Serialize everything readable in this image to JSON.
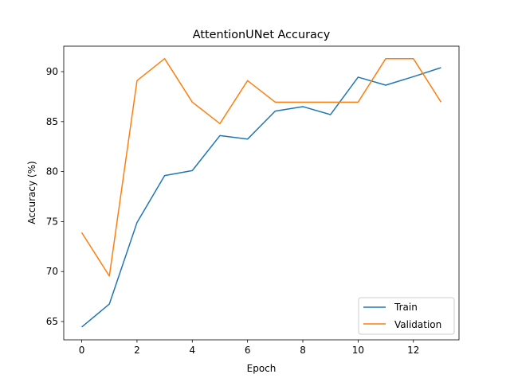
{
  "chart_data": {
    "type": "line",
    "title": "AttentionUNet Accuracy",
    "xlabel": "Epoch",
    "ylabel": "Accuracy (%)",
    "x": [
      0,
      1,
      2,
      3,
      4,
      5,
      6,
      7,
      8,
      9,
      10,
      11,
      12,
      13
    ],
    "xlim": [
      -0.65,
      13.65
    ],
    "ylim": [
      63.17,
      92.55
    ],
    "xticks": [
      0,
      2,
      4,
      6,
      8,
      10,
      12
    ],
    "yticks": [
      65,
      70,
      75,
      80,
      85,
      90
    ],
    "grid": false,
    "legend_position": "lower-right",
    "series": [
      {
        "name": "Train",
        "color": "#1f77b4",
        "values": [
          64.45,
          66.75,
          74.9,
          79.6,
          80.1,
          83.6,
          83.25,
          86.05,
          86.5,
          85.7,
          89.45,
          88.65,
          89.5,
          90.4
        ]
      },
      {
        "name": "Validation",
        "color": "#ff7f0e",
        "values": [
          73.9,
          69.55,
          89.1,
          91.3,
          86.95,
          84.8,
          89.1,
          86.95,
          86.95,
          86.95,
          86.95,
          91.3,
          91.3,
          86.95
        ]
      }
    ]
  }
}
